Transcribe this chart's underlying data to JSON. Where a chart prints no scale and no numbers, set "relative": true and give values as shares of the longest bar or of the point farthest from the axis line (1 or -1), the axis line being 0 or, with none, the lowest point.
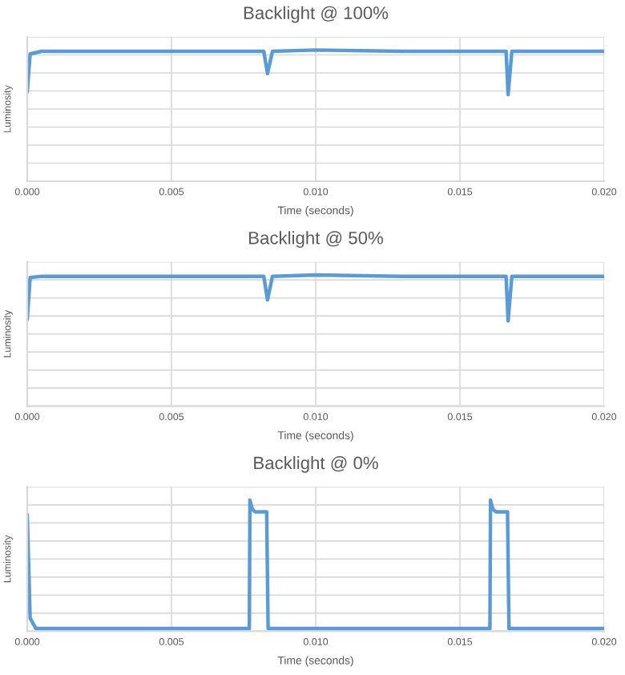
{
  "chart_data": [
    {
      "type": "line",
      "title": "Backlight @ 100%",
      "xlabel": "Time (seconds)",
      "ylabel": "Luminosity",
      "relative": true,
      "grid": true,
      "marker": "none",
      "line_style": "solid",
      "xlim": [
        0,
        0.02
      ],
      "xticks": [
        {
          "value": 0,
          "label": "0.000"
        },
        {
          "value": 0.005,
          "label": "0.005"
        },
        {
          "value": 0.01,
          "label": "0.010"
        },
        {
          "value": 0.015,
          "label": "0.015"
        },
        {
          "value": 0.02,
          "label": "0.020"
        }
      ],
      "series": [
        {
          "color": "#5b9bd5",
          "x": [
            0,
            0.0001,
            0.0005,
            0.003,
            0.006,
            0.0082,
            0.00833,
            0.0085,
            0.01,
            0.013,
            0.0166,
            0.01667,
            0.0168,
            0.018,
            0.02
          ],
          "values": [
            0.68,
            0.97,
            0.99,
            0.99,
            0.99,
            0.99,
            0.82,
            0.99,
            1.0,
            0.99,
            0.99,
            0.66,
            0.99,
            0.99,
            0.99
          ]
        }
      ]
    },
    {
      "type": "line",
      "title": "Backlight @ 50%",
      "xlabel": "Time (seconds)",
      "ylabel": "Luminosity",
      "relative": true,
      "grid": true,
      "marker": "none",
      "line_style": "solid",
      "xlim": [
        0,
        0.02
      ],
      "xticks": [
        {
          "value": 0,
          "label": "0.000"
        },
        {
          "value": 0.005,
          "label": "0.005"
        },
        {
          "value": 0.01,
          "label": "0.010"
        },
        {
          "value": 0.015,
          "label": "0.015"
        },
        {
          "value": 0.02,
          "label": "0.020"
        }
      ],
      "series": [
        {
          "color": "#5b9bd5",
          "x": [
            0,
            0.0001,
            0.0005,
            0.003,
            0.006,
            0.0082,
            0.00833,
            0.0085,
            0.01,
            0.013,
            0.0166,
            0.01667,
            0.0168,
            0.018,
            0.02
          ],
          "values": [
            0.66,
            0.98,
            0.99,
            0.99,
            0.99,
            0.99,
            0.81,
            0.99,
            1.0,
            0.99,
            0.99,
            0.65,
            0.99,
            0.99,
            0.99
          ]
        }
      ]
    },
    {
      "type": "line",
      "title": "Backlight @ 0%",
      "xlabel": "Time (seconds)",
      "ylabel": "Luminosity",
      "relative": true,
      "grid": true,
      "marker": "none",
      "line_style": "solid",
      "xlim": [
        0,
        0.02
      ],
      "xticks": [
        {
          "value": 0,
          "label": "0.000"
        },
        {
          "value": 0.005,
          "label": "0.005"
        },
        {
          "value": 0.01,
          "label": "0.010"
        },
        {
          "value": 0.015,
          "label": "0.015"
        },
        {
          "value": 0.02,
          "label": "0.020"
        }
      ],
      "series": [
        {
          "color": "#5b9bd5",
          "x": [
            0,
            0.0001,
            0.0003,
            0.004,
            0.0077,
            0.00772,
            0.0078,
            0.0079,
            0.0083,
            0.00835,
            0.0086,
            0.012,
            0.01604,
            0.01606,
            0.01614,
            0.01625,
            0.01665,
            0.0167,
            0.017,
            0.02
          ],
          "values": [
            0.89,
            0.1,
            0.02,
            0.02,
            0.02,
            1.0,
            0.93,
            0.91,
            0.91,
            0.02,
            0.02,
            0.02,
            0.02,
            1.0,
            0.93,
            0.91,
            0.91,
            0.02,
            0.02,
            0.02
          ]
        }
      ]
    }
  ]
}
